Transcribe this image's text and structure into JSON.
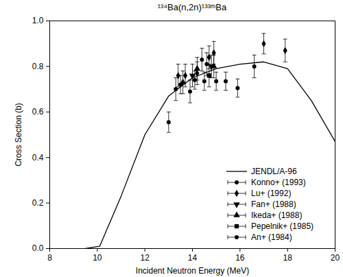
{
  "chart_data": {
    "type": "scatter",
    "title": "¹³⁴Ba(n,2n)¹³³ᵐBa",
    "x_label": "Incident Neutron Energy (MeV)",
    "y_label": "Cross Section (b)",
    "xlim": [
      8,
      20
    ],
    "xticks": [
      8,
      10,
      12,
      14,
      16,
      18,
      20
    ],
    "ylim": [
      0,
      1
    ],
    "yticks": [
      {
        "value": 0,
        "label": "0.0"
      },
      0.2,
      0.4,
      0.6,
      0.8,
      {
        "value": 1,
        "label": "1.0"
      }
    ],
    "legend": "lower right",
    "series": [
      {
        "name": "JENDL/A-96",
        "type": "line",
        "color": "#000000",
        "line_style": "solid",
        "x": [
          9.5,
          10.1,
          11,
          12,
          13,
          14,
          15,
          16,
          17,
          18,
          19,
          20
        ],
        "values": [
          0,
          0.01,
          0.23,
          0.5,
          0.67,
          0.75,
          0.79,
          0.81,
          0.82,
          0.79,
          0.65,
          0.47
        ]
      },
      {
        "name": "Konno+ (1993)",
        "type": "scatter",
        "marker": "circle",
        "color": "#000000",
        "x": [
          13.0,
          13.5,
          14.1,
          14.5,
          15.0,
          15.4,
          15.9,
          16.6
        ],
        "values": [
          0.555,
          0.72,
          0.74,
          0.735,
          0.735,
          0.735,
          0.705,
          0.8
        ],
        "errors": [
          0.045,
          0.04,
          0.04,
          0.04,
          0.04,
          0.04,
          0.04,
          0.05
        ]
      },
      {
        "name": "Lu+ (1992)",
        "type": "scatter",
        "marker": "diamond",
        "color": "#000000",
        "x": [
          13.4,
          13.7,
          14.2,
          14.7,
          14.9,
          17.0,
          17.9
        ],
        "values": [
          0.76,
          0.76,
          0.77,
          0.84,
          0.86,
          0.9,
          0.87
        ],
        "errors": [
          0.05,
          0.05,
          0.05,
          0.05,
          0.05,
          0.045,
          0.05
        ]
      },
      {
        "name": "Fan+ (1988)",
        "type": "scatter",
        "marker": "triangle-down",
        "color": "#000000",
        "x": [
          14.0,
          14.8
        ],
        "values": [
          0.76,
          0.8
        ],
        "errors": [
          0.05,
          0.05
        ]
      },
      {
        "name": "Ikeda+ (1988)",
        "type": "scatter",
        "marker": "triangle",
        "color": "#000000",
        "x": [
          13.6,
          14.2,
          14.9
        ],
        "values": [
          0.73,
          0.79,
          0.8
        ],
        "errors": [
          0.05,
          0.05,
          0.05
        ]
      },
      {
        "name": "Pepelnik+ (1985)",
        "type": "scatter",
        "marker": "square",
        "color": "#000000",
        "x": [
          14.7
        ],
        "values": [
          0.76
        ],
        "errors": [
          0.05
        ]
      },
      {
        "name": "An+ (1984)",
        "type": "scatter",
        "marker": "circle",
        "color": "#000000",
        "x": [
          13.3,
          13.9,
          14.4,
          14.6
        ],
        "values": [
          0.7,
          0.69,
          0.83,
          0.81
        ],
        "errors": [
          0.05,
          0.05,
          0.05,
          0.05
        ]
      }
    ]
  }
}
